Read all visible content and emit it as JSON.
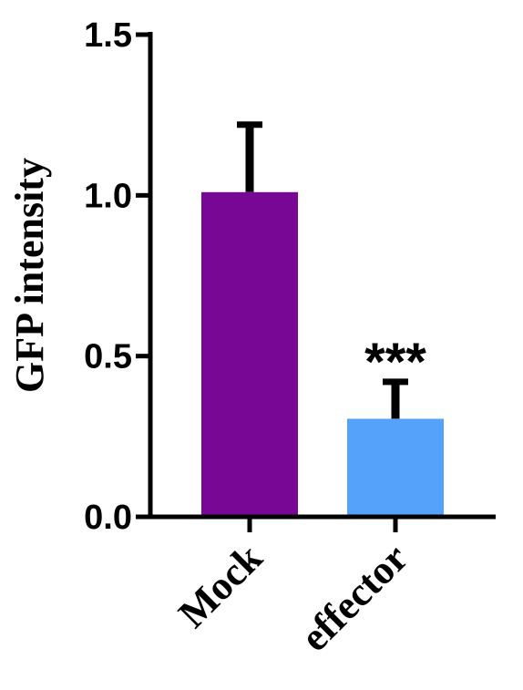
{
  "chart_data": {
    "type": "bar",
    "title": "",
    "xlabel": "",
    "ylabel": "GFP intensity",
    "ylim": [
      0,
      1.5
    ],
    "yticks": [
      "0.0",
      "0.5",
      "1.0",
      "1.5"
    ],
    "categories": [
      "Mock",
      "effector"
    ],
    "values": [
      1.01,
      0.305
    ],
    "errors": [
      0.21,
      0.115
    ],
    "significance": [
      "",
      "***"
    ],
    "colors": [
      "#770794",
      "#55A2FB"
    ],
    "grid": false,
    "legend": "none"
  }
}
